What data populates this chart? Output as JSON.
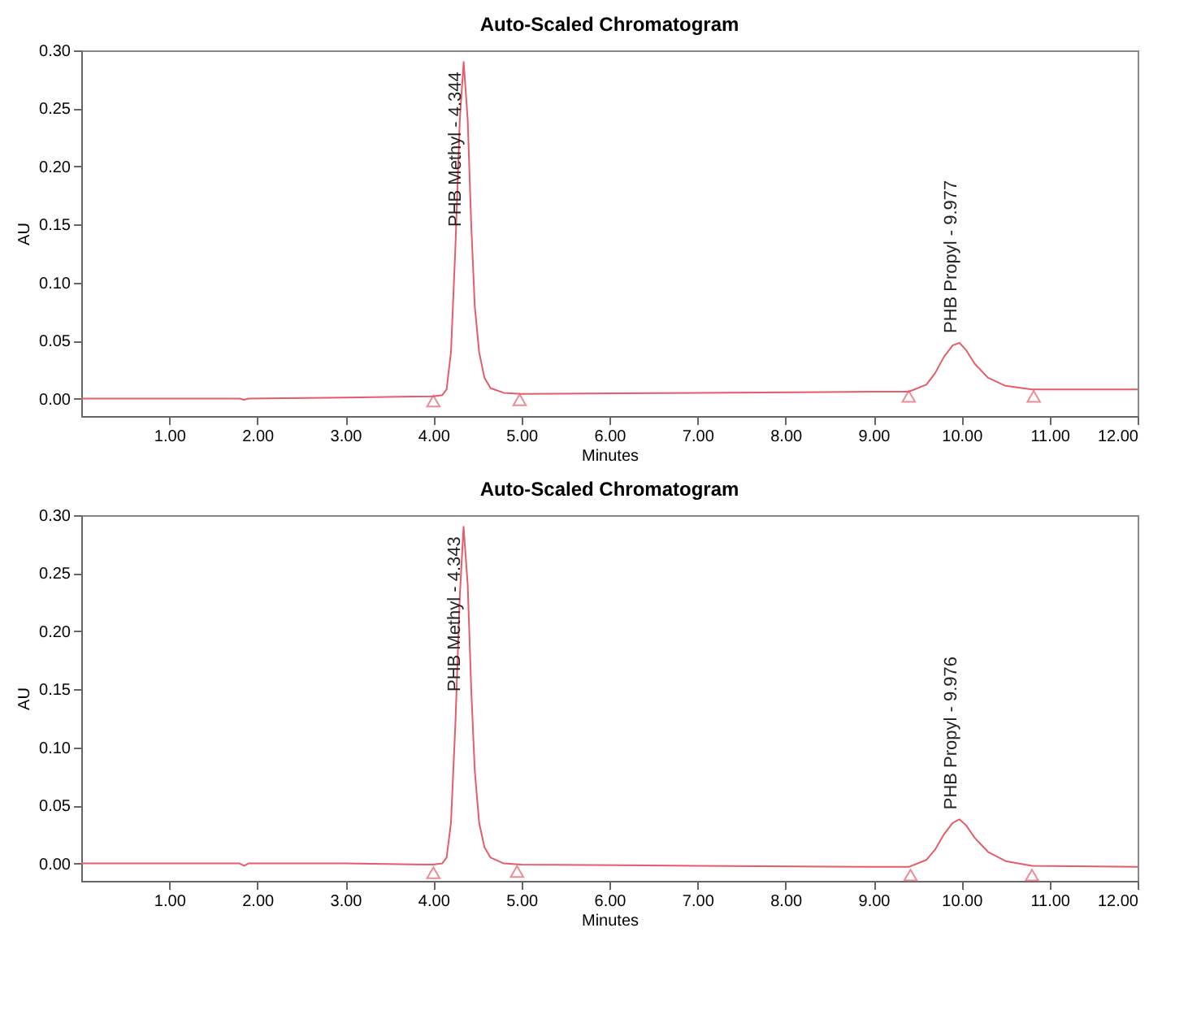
{
  "chart_data": [
    {
      "type": "line",
      "title": "Auto-Scaled Chromatogram",
      "xlabel": "Minutes",
      "ylabel": "AU",
      "xlim": [
        0,
        12
      ],
      "ylim": [
        -0.015,
        0.3
      ],
      "xticks": [
        {
          "value": 1,
          "label": "1.00"
        },
        {
          "value": 2,
          "label": "2.00"
        },
        {
          "value": 3,
          "label": "3.00"
        },
        {
          "value": 4,
          "label": "4.00"
        },
        {
          "value": 5,
          "label": "5.00"
        },
        {
          "value": 6,
          "label": "6.00"
        },
        {
          "value": 7,
          "label": "7.00"
        },
        {
          "value": 8,
          "label": "8.00"
        },
        {
          "value": 9,
          "label": "9.00"
        },
        {
          "value": 10,
          "label": "10.00"
        },
        {
          "value": 11,
          "label": "11.00"
        },
        {
          "value": 12,
          "label": "12.00"
        }
      ],
      "yticks": [
        {
          "value": 0,
          "label": "0.00"
        },
        {
          "value": 0.05,
          "label": "0.05"
        },
        {
          "value": 0.1,
          "label": "0.10"
        },
        {
          "value": 0.15,
          "label": "0.15"
        },
        {
          "value": 0.2,
          "label": "0.20"
        },
        {
          "value": 0.25,
          "label": "0.25"
        },
        {
          "value": 0.3,
          "label": "0.30"
        }
      ],
      "series": [
        {
          "type": "line",
          "color": "#e35d6a",
          "x": [
            0,
            1.8,
            1.85,
            1.9,
            3,
            4,
            4.1,
            4.15,
            4.2,
            4.25,
            4.3,
            4.344,
            4.39,
            4.43,
            4.47,
            4.52,
            4.58,
            4.65,
            4.8,
            5,
            7,
            9,
            9.4,
            9.6,
            9.7,
            9.8,
            9.9,
            9.977,
            10.05,
            10.15,
            10.3,
            10.5,
            10.8,
            12
          ],
          "values": [
            0,
            0,
            -0.001,
            0,
            0.001,
            0.002,
            0.003,
            0.008,
            0.04,
            0.13,
            0.24,
            0.29,
            0.24,
            0.15,
            0.08,
            0.04,
            0.018,
            0.009,
            0.005,
            0.004,
            0.005,
            0.006,
            0.006,
            0.012,
            0.022,
            0.036,
            0.046,
            0.048,
            0.042,
            0.03,
            0.018,
            0.011,
            0.008,
            0.008
          ]
        },
        {
          "type": "scatter",
          "marker": "triangle",
          "color": "#e35d6a",
          "x": [
            4.0,
            4.98,
            9.4,
            10.82
          ],
          "values": [
            -0.002,
            -0.001,
            0.002,
            0.002
          ]
        }
      ],
      "annotations": [
        {
          "text": "PHB Methyl - 4.344",
          "x": 4.344,
          "y": 0.29
        },
        {
          "text": "PHB Propyl - 9.977",
          "x": 9.977,
          "y": 0.048
        }
      ]
    },
    {
      "type": "line",
      "title": "Auto-Scaled Chromatogram",
      "xlabel": "Minutes",
      "ylabel": "AU",
      "xlim": [
        0,
        12
      ],
      "ylim": [
        -0.015,
        0.3
      ],
      "xticks": [
        {
          "value": 1,
          "label": "1.00"
        },
        {
          "value": 2,
          "label": "2.00"
        },
        {
          "value": 3,
          "label": "3.00"
        },
        {
          "value": 4,
          "label": "4.00"
        },
        {
          "value": 5,
          "label": "5.00"
        },
        {
          "value": 6,
          "label": "6.00"
        },
        {
          "value": 7,
          "label": "7.00"
        },
        {
          "value": 8,
          "label": "8.00"
        },
        {
          "value": 9,
          "label": "9.00"
        },
        {
          "value": 10,
          "label": "10.00"
        },
        {
          "value": 11,
          "label": "11.00"
        },
        {
          "value": 12,
          "label": "12.00"
        }
      ],
      "yticks": [
        {
          "value": 0,
          "label": "0.00"
        },
        {
          "value": 0.05,
          "label": "0.05"
        },
        {
          "value": 0.1,
          "label": "0.10"
        },
        {
          "value": 0.15,
          "label": "0.15"
        },
        {
          "value": 0.2,
          "label": "0.20"
        },
        {
          "value": 0.25,
          "label": "0.25"
        },
        {
          "value": 0.3,
          "label": "0.30"
        }
      ],
      "series": [
        {
          "type": "line",
          "color": "#e35d6a",
          "x": [
            0,
            1.8,
            1.85,
            1.9,
            3,
            4,
            4.1,
            4.15,
            4.2,
            4.25,
            4.3,
            4.343,
            4.39,
            4.43,
            4.47,
            4.52,
            4.58,
            4.65,
            4.8,
            5,
            7,
            9,
            9.4,
            9.6,
            9.7,
            9.8,
            9.9,
            9.976,
            10.05,
            10.15,
            10.3,
            10.5,
            10.8,
            12
          ],
          "values": [
            0,
            0,
            -0.002,
            0,
            0,
            -0.001,
            0,
            0.005,
            0.035,
            0.12,
            0.23,
            0.29,
            0.24,
            0.15,
            0.08,
            0.035,
            0.014,
            0.005,
            0,
            -0.001,
            -0.002,
            -0.003,
            -0.003,
            0.003,
            0.012,
            0.025,
            0.035,
            0.038,
            0.033,
            0.022,
            0.01,
            0.002,
            -0.002,
            -0.003
          ]
        },
        {
          "type": "scatter",
          "marker": "triangle",
          "color": "#e35d6a",
          "x": [
            4.0,
            4.95,
            9.42,
            10.8
          ],
          "values": [
            -0.008,
            -0.007,
            -0.01,
            -0.01
          ]
        }
      ],
      "annotations": [
        {
          "text": "PHB Methyl - 4.343",
          "x": 4.343,
          "y": 0.29
        },
        {
          "text": "PHB Propyl - 9.976",
          "x": 9.976,
          "y": 0.038
        }
      ]
    }
  ]
}
